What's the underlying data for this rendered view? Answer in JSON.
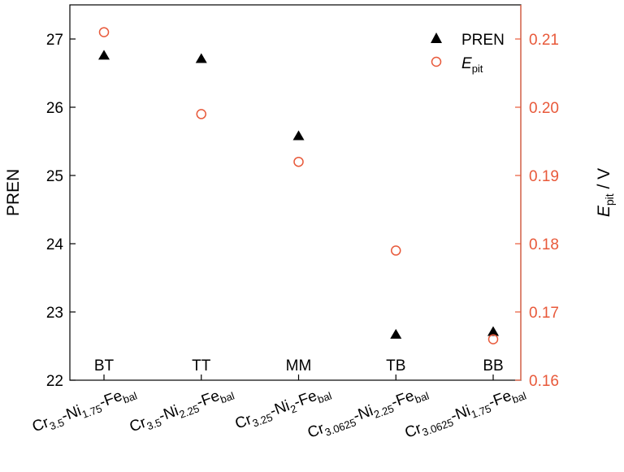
{
  "chart_data": {
    "type": "scatter",
    "title": "",
    "categories": [
      "BT",
      "TT",
      "MM",
      "TB",
      "BB"
    ],
    "x_tick_labels": [
      {
        "base": "Cr",
        "sub1": "3.5",
        "mid": "-Ni",
        "sub2": "1.75",
        "end": "-Fe",
        "sub3": "bal"
      },
      {
        "base": "Cr",
        "sub1": "3.5",
        "mid": "-Ni",
        "sub2": "2.25",
        "end": "-Fe",
        "sub3": "bal"
      },
      {
        "base": "Cr",
        "sub1": "3.25",
        "mid": "-Ni",
        "sub2": "2",
        "end": "-Fe",
        "sub3": "bal"
      },
      {
        "base": "Cr",
        "sub1": "3.0625",
        "mid": "-Ni",
        "sub2": "2.25",
        "end": "-Fe",
        "sub3": "bal"
      },
      {
        "base": "Cr",
        "sub1": "3.0625",
        "mid": "-Ni",
        "sub2": "1.75",
        "end": "-Fe",
        "sub3": "bal"
      }
    ],
    "ylabel_left": "PREN",
    "ylabel_right_main": "E",
    "ylabel_right_sub": "pit",
    "ylabel_right_unit": " / V",
    "ylim_left": [
      22,
      27.5
    ],
    "ylim_right": [
      0.16,
      0.215
    ],
    "yticks_left": [
      "22",
      "23",
      "24",
      "25",
      "26",
      "27"
    ],
    "yticks_right": [
      "0.16",
      "0.17",
      "0.18",
      "0.19",
      "0.20",
      "0.21"
    ],
    "series": [
      {
        "name": "PREN",
        "axis": "left",
        "marker": "triangle",
        "color": "#000000",
        "values": [
          26.77,
          26.72,
          25.59,
          22.68,
          22.72
        ]
      },
      {
        "name": "E",
        "name_sub": "pit",
        "axis": "right",
        "marker": "circle-open",
        "color": "#e8593a",
        "values": [
          0.211,
          0.199,
          0.192,
          0.179,
          0.166
        ]
      }
    ],
    "legend": {
      "position": "top-right"
    },
    "grid": false,
    "colors": {
      "left_axis": "#000000",
      "right_axis": "#e8593a"
    }
  }
}
